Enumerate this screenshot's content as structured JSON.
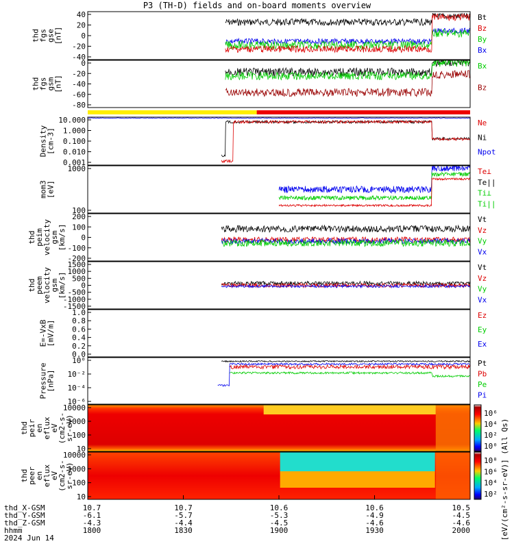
{
  "title": "P3 (TH-D) fields and on-board moments overview",
  "date_label": "2024 Jun 14",
  "colors": {
    "black": "#000000",
    "red": "#dd0000",
    "green": "#00cc00",
    "blue": "#0000ee",
    "darkred": "#990000",
    "yellow": "#ffee00",
    "barred": "#ee0000"
  },
  "mode_bar": {
    "segments": [
      {
        "from": "18:00",
        "to": "18:48",
        "color": "yellow"
      },
      {
        "from": "18:48",
        "to": "20:00",
        "color": "barred"
      }
    ]
  },
  "panels": [
    {
      "id": "fgs",
      "ylabel": [
        "thd",
        "fgs",
        "gse",
        "[nT]"
      ],
      "ticks": [
        "40",
        "20",
        "0",
        "-20",
        "-40"
      ],
      "legend": [
        {
          "text": "Bt",
          "color": "black"
        },
        {
          "text": "Bz",
          "color": "red"
        },
        {
          "text": "By",
          "color": "green"
        },
        {
          "text": "Bx",
          "color": "blue"
        }
      ]
    },
    {
      "id": "fgs-gsm",
      "ylabel": [
        "thd",
        "fgs",
        "gsm",
        "[nT]"
      ],
      "ticks": [
        "0",
        "-20",
        "-40",
        "-60",
        "-80"
      ],
      "legend": [
        {
          "text": "Bx",
          "color": "green"
        },
        {
          "text": "Bz",
          "color": "darkred"
        }
      ]
    },
    {
      "id": "density",
      "ylabel": [
        "Density",
        "[cm-3]"
      ],
      "ticks": [
        "10.000",
        "1.000",
        "0.100",
        "0.010",
        "0.001"
      ],
      "legend": [
        {
          "text": "Ne",
          "color": "red"
        },
        {
          "text": "Ni",
          "color": "black"
        },
        {
          "text": "Npot",
          "color": "blue"
        }
      ]
    },
    {
      "id": "temp",
      "ylabel": [
        "mom3",
        "[eV]"
      ],
      "ticks": [
        "1000",
        "100"
      ],
      "legend": [
        {
          "text": "Te⊥",
          "color": "red"
        },
        {
          "text": "Te||",
          "color": "black"
        },
        {
          "text": "Ti⊥",
          "color": "green"
        },
        {
          "text": "Ti||",
          "color": "green"
        }
      ]
    },
    {
      "id": "vi",
      "ylabel": [
        "thd",
        "peim",
        "velocity",
        "gsm",
        "[km/s]"
      ],
      "ticks": [
        "200",
        "100",
        "0",
        "-100",
        "-200"
      ],
      "legend": [
        {
          "text": "Vt",
          "color": "black"
        },
        {
          "text": "Vz",
          "color": "red"
        },
        {
          "text": "Vy",
          "color": "green"
        },
        {
          "text": "Vx",
          "color": "blue"
        }
      ]
    },
    {
      "id": "ve",
      "ylabel": [
        "thd",
        "peem",
        "velocity",
        "gsm",
        "[km/s]"
      ],
      "ticks": [
        "1500",
        "1000",
        "500",
        "0",
        "-500",
        "-1000",
        "-1500"
      ],
      "legend": [
        {
          "text": "Vt",
          "color": "black"
        },
        {
          "text": "Vz",
          "color": "red"
        },
        {
          "text": "Vy",
          "color": "green"
        },
        {
          "text": "Vx",
          "color": "blue"
        }
      ]
    },
    {
      "id": "efield",
      "ylabel": [
        "E=-VxB",
        "[mV/m]"
      ],
      "ticks": [
        "1.0",
        "0.8",
        "0.6",
        "0.4",
        "0.2",
        "0.0"
      ],
      "legend": [
        {
          "text": "Ez",
          "color": "red"
        },
        {
          "text": "Ey",
          "color": "green"
        },
        {
          "text": "Ex",
          "color": "blue"
        }
      ]
    },
    {
      "id": "pressure",
      "ylabel": [
        "Pressure",
        "[nPa]"
      ],
      "ticks": [
        "10⁰",
        "10⁻²",
        "10⁻⁴",
        "10⁻⁶"
      ],
      "legend": [
        {
          "text": "Pt",
          "color": "black"
        },
        {
          "text": "Pb",
          "color": "red"
        },
        {
          "text": "Pe",
          "color": "green"
        },
        {
          "text": "Pi",
          "color": "blue"
        }
      ]
    },
    {
      "id": "ion-spec",
      "ylabel": [
        "thd",
        "peir",
        "en",
        "eflux",
        "eV",
        "(cm2-s-",
        "sr-eV)"
      ],
      "ticks": [
        "10000",
        "1000",
        "100",
        "10"
      ],
      "legend": []
    },
    {
      "id": "el-spec",
      "ylabel": [
        "thd",
        "peer",
        "en",
        "eflux",
        "eV",
        "(cm2-s-",
        "sr-eV)"
      ],
      "ticks": [
        "10000",
        "1000",
        "100",
        "10"
      ],
      "legend": []
    }
  ],
  "colorbar": {
    "label": "[eV/(cm²-s-sr-eV)] (All Qs)",
    "ticks_ion": [
      "10⁶",
      "10⁴",
      "10²",
      "10⁰"
    ],
    "ticks_el": [
      "10⁸",
      "10⁶",
      "10⁴",
      "10²"
    ]
  },
  "xaxis": {
    "row_labels": [
      "thd_X-GSM",
      "thd_Y-GSM",
      "thd_Z-GSM",
      "hhmm",
      "2024 Jun 14"
    ],
    "columns": [
      {
        "values": [
          "10.7",
          "-6.1",
          "-4.3",
          "1800"
        ]
      },
      {
        "values": [
          "10.7",
          "-5.7",
          "-4.4",
          "1830"
        ]
      },
      {
        "values": [
          "10.6",
          "-5.3",
          "-4.5",
          "1900"
        ]
      },
      {
        "values": [
          "10.6",
          "-4.9",
          "-4.6",
          "1930"
        ]
      },
      {
        "values": [
          "10.5",
          "-4.5",
          "-4.6",
          "2000"
        ]
      }
    ]
  }
}
